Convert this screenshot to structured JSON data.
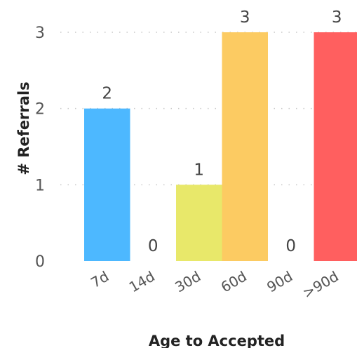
{
  "chart_data": {
    "type": "bar",
    "categories": [
      "7d",
      "14d",
      "30d",
      "60d",
      "90d",
      ">90d"
    ],
    "values": [
      2,
      0,
      1,
      3,
      0,
      3
    ],
    "colors": [
      "#4DB8FF",
      "#4DB8FF",
      "#E8E86A",
      "#FCCB62",
      "#FCCB62",
      "#FF5F5F"
    ],
    "xlabel": "Age to Accepted",
    "ylabel": "# Referrals",
    "ylim": [
      0,
      3
    ],
    "yticks": [
      0,
      1,
      2,
      3
    ],
    "grid": true,
    "data_labels": true
  }
}
